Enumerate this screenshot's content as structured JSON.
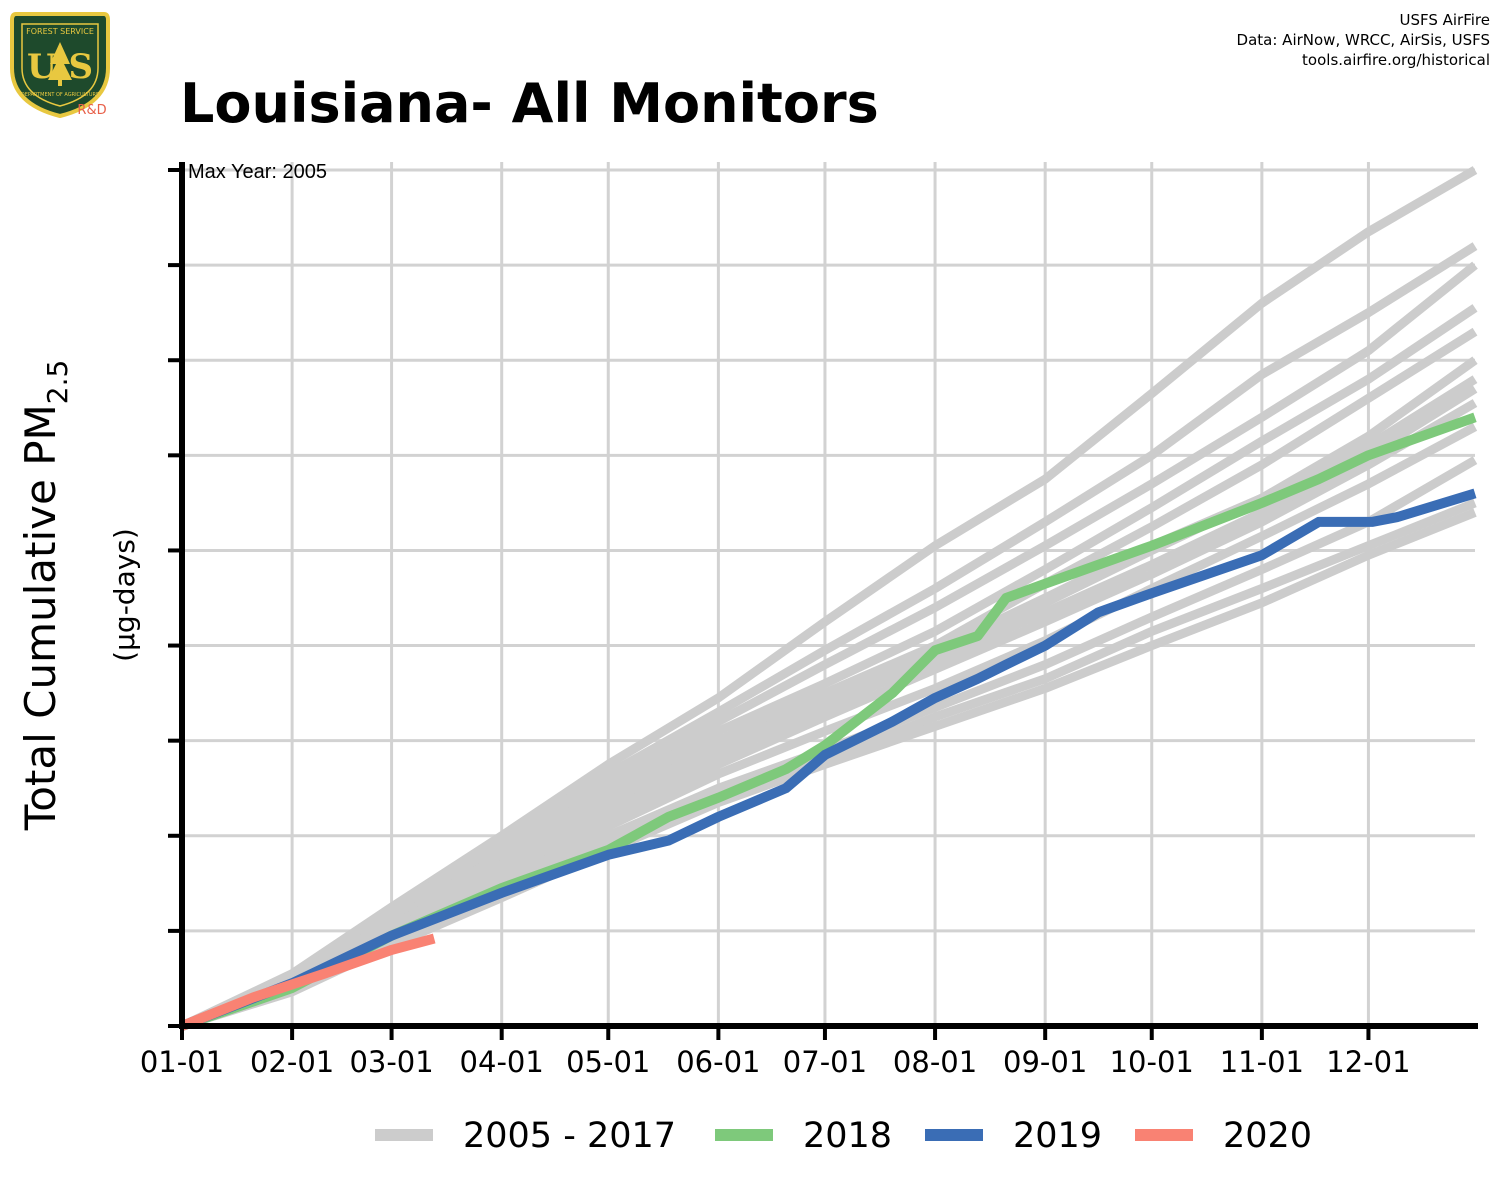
{
  "header": {
    "title": "Louisiana- All Monitors",
    "credits": [
      "USFS AirFire",
      "Data: AirNow, WRCC, AirSis, USFS",
      "tools.airfire.org/historical"
    ]
  },
  "logo": {
    "top_text": "FOREST SERVICE",
    "letters": "U S",
    "bottom_text": "DEPARTMENT OF AGRICULTURE",
    "tag": "R&D",
    "colors": {
      "shield": "#1e4a2c",
      "trim": "#e8c840",
      "tag": "#e8604a"
    }
  },
  "chart_data": {
    "type": "line",
    "title": "Louisiana- All Monitors",
    "annotation": "Max Year: 2005",
    "ylabel": "Total Cumulative PM",
    "ylabel_sub": "2.5",
    "yunit": "(µg-days)",
    "x_tick_labels": [
      "01-01",
      "02-01",
      "03-01",
      "04-01",
      "05-01",
      "06-01",
      "07-01",
      "08-01",
      "09-01",
      "10-01",
      "11-01",
      "12-01"
    ],
    "x_tick_days": [
      0,
      31,
      59,
      90,
      120,
      151,
      181,
      212,
      243,
      273,
      304,
      334
    ],
    "xlim": [
      0,
      364
    ],
    "ylim": [
      0,
      9
    ],
    "y_tick_labels": [],
    "grid": true,
    "legend_position": "bottom",
    "legend": [
      {
        "label": "2005 - 2017",
        "color": "#cccccc"
      },
      {
        "label": "2018",
        "color": "#7ec97b"
      },
      {
        "label": "2019",
        "color": "#3a6db5"
      },
      {
        "label": "2020",
        "color": "#f98273"
      }
    ],
    "series": [
      {
        "group": "2005 - 2017",
        "color": "#cccccc",
        "x": [
          0,
          31,
          59,
          90,
          120,
          151,
          181,
          212,
          243,
          273,
          304,
          334,
          364
        ],
        "y": [
          0,
          0.55,
          1.25,
          2.0,
          2.75,
          3.45,
          4.25,
          5.05,
          5.75,
          6.65,
          7.6,
          8.35,
          9.0
        ]
      },
      {
        "group": "2005 - 2017",
        "color": "#cccccc",
        "x": [
          0,
          31,
          59,
          90,
          120,
          151,
          181,
          212,
          243,
          273,
          304,
          334,
          364
        ],
        "y": [
          0,
          0.52,
          1.2,
          1.95,
          2.65,
          3.3,
          3.95,
          4.6,
          5.3,
          6.0,
          6.85,
          7.5,
          8.2
        ]
      },
      {
        "group": "2005 - 2017",
        "color": "#cccccc",
        "x": [
          0,
          31,
          59,
          90,
          120,
          151,
          181,
          212,
          243,
          273,
          304,
          334,
          364
        ],
        "y": [
          0,
          0.5,
          1.15,
          1.9,
          2.55,
          3.2,
          3.8,
          4.4,
          5.05,
          5.7,
          6.4,
          7.1,
          8.0
        ]
      },
      {
        "group": "2005 - 2017",
        "color": "#cccccc",
        "x": [
          0,
          31,
          59,
          90,
          120,
          151,
          181,
          212,
          243,
          273,
          304,
          334,
          364
        ],
        "y": [
          0,
          0.5,
          1.1,
          1.8,
          2.5,
          3.1,
          3.6,
          4.15,
          4.8,
          5.45,
          6.15,
          6.8,
          7.55
        ]
      },
      {
        "group": "2005 - 2017",
        "color": "#cccccc",
        "x": [
          0,
          31,
          59,
          90,
          120,
          151,
          181,
          212,
          243,
          273,
          304,
          334,
          364
        ],
        "y": [
          0,
          0.48,
          1.1,
          1.8,
          2.45,
          3.0,
          3.5,
          4.0,
          4.65,
          5.25,
          5.9,
          6.6,
          7.3
        ]
      },
      {
        "group": "2005 - 2017",
        "color": "#cccccc",
        "x": [
          0,
          31,
          59,
          90,
          120,
          151,
          181,
          212,
          243,
          273,
          304,
          334,
          364
        ],
        "y": [
          0,
          0.47,
          1.05,
          1.7,
          2.35,
          2.95,
          3.4,
          3.9,
          4.45,
          5.0,
          5.55,
          6.2,
          7.0
        ]
      },
      {
        "group": "2005 - 2017",
        "color": "#cccccc",
        "x": [
          0,
          31,
          59,
          90,
          120,
          151,
          181,
          212,
          243,
          273,
          304,
          334,
          364
        ],
        "y": [
          0,
          0.45,
          1.05,
          1.7,
          2.3,
          2.9,
          3.45,
          3.95,
          4.5,
          5.05,
          5.55,
          6.1,
          6.8
        ]
      },
      {
        "group": "2005 - 2017",
        "color": "#cccccc",
        "x": [
          0,
          31,
          59,
          90,
          120,
          151,
          181,
          212,
          243,
          273,
          304,
          334,
          364
        ],
        "y": [
          0,
          0.45,
          1.0,
          1.65,
          2.25,
          2.85,
          3.35,
          3.85,
          4.35,
          4.85,
          5.4,
          6.0,
          6.7
        ]
      },
      {
        "group": "2005 - 2017",
        "color": "#cccccc",
        "x": [
          0,
          31,
          59,
          90,
          120,
          151,
          181,
          212,
          243,
          273,
          304,
          334,
          364
        ],
        "y": [
          0,
          0.44,
          1.0,
          1.6,
          2.2,
          2.75,
          3.25,
          3.75,
          4.25,
          4.75,
          5.3,
          5.9,
          6.55
        ]
      },
      {
        "group": "2005 - 2017",
        "color": "#cccccc",
        "x": [
          0,
          31,
          59,
          90,
          120,
          151,
          181,
          212,
          243,
          273,
          304,
          334,
          364
        ],
        "y": [
          0,
          0.42,
          0.95,
          1.5,
          2.1,
          2.65,
          3.1,
          3.55,
          4.05,
          4.6,
          5.15,
          5.7,
          6.3
        ]
      },
      {
        "group": "2005 - 2017",
        "color": "#cccccc",
        "x": [
          0,
          31,
          59,
          90,
          120,
          151,
          181,
          212,
          243,
          273,
          304,
          334,
          364
        ],
        "y": [
          0,
          0.4,
          0.92,
          1.45,
          2.0,
          2.5,
          2.9,
          3.35,
          3.8,
          4.3,
          4.8,
          5.3,
          5.95
        ]
      },
      {
        "group": "2005 - 2017",
        "color": "#cccccc",
        "x": [
          0,
          31,
          59,
          90,
          120,
          151,
          181,
          212,
          243,
          273,
          304,
          334,
          364
        ],
        "y": [
          0,
          0.38,
          0.9,
          1.4,
          1.95,
          2.45,
          2.8,
          3.25,
          3.65,
          4.15,
          4.6,
          5.05,
          5.5
        ]
      },
      {
        "group": "2005 - 2017",
        "color": "#cccccc",
        "x": [
          0,
          31,
          59,
          90,
          120,
          151,
          181,
          212,
          243,
          273,
          304,
          334,
          364
        ],
        "y": [
          0,
          0.36,
          0.85,
          1.35,
          1.85,
          2.35,
          2.75,
          3.15,
          3.55,
          4.0,
          4.45,
          4.95,
          5.4
        ]
      },
      {
        "group": "2018",
        "color": "#7ec97b",
        "x": [
          0,
          31,
          59,
          90,
          120,
          137,
          151,
          170,
          181,
          200,
          212,
          224,
          232,
          243,
          258,
          273,
          304,
          320,
          334,
          364
        ],
        "y": [
          0,
          0.4,
          0.95,
          1.45,
          1.85,
          2.2,
          2.4,
          2.7,
          2.95,
          3.5,
          3.95,
          4.1,
          4.5,
          4.65,
          4.85,
          5.05,
          5.5,
          5.75,
          6.0,
          6.4
        ]
      },
      {
        "group": "2019",
        "color": "#3a6db5",
        "x": [
          0,
          31,
          59,
          90,
          120,
          137,
          151,
          170,
          181,
          200,
          212,
          224,
          232,
          243,
          258,
          273,
          304,
          320,
          335,
          342,
          364
        ],
        "y": [
          0,
          0.45,
          0.95,
          1.4,
          1.8,
          1.95,
          2.2,
          2.5,
          2.85,
          3.2,
          3.45,
          3.65,
          3.8,
          4.0,
          4.35,
          4.55,
          4.95,
          5.3,
          5.3,
          5.35,
          5.6
        ]
      },
      {
        "group": "2020",
        "color": "#f98273",
        "x": [
          0,
          20,
          40,
          59,
          71
        ],
        "y": [
          0,
          0.3,
          0.55,
          0.8,
          0.92
        ]
      }
    ]
  }
}
